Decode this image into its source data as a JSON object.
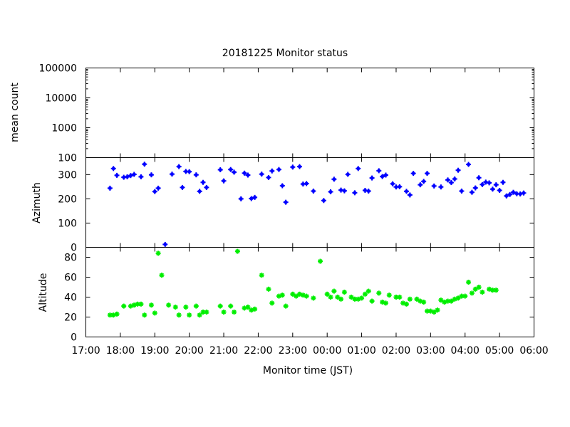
{
  "chart_data": {
    "type": "scatter",
    "title": "20181225 Monitor status",
    "xlabel": "Monitor time (JST)",
    "x_tick_labels": [
      "17:00",
      "18:00",
      "19:00",
      "20:00",
      "21:00",
      "22:00",
      "23:00",
      "00:00",
      "01:00",
      "02:00",
      "03:00",
      "04:00",
      "05:00",
      "06:00"
    ],
    "xlim": [
      "17:00",
      "06:00"
    ],
    "grid": false,
    "legend": "none",
    "panels": [
      {
        "key": "count",
        "ylabel": "mean count",
        "yscale": "log",
        "ylim": [
          100,
          100000
        ],
        "y_tick_labels": [
          "100",
          "1000",
          "10000",
          "100000"
        ],
        "color": "#0000ff",
        "points": []
      },
      {
        "key": "azimuth",
        "ylabel": "Azimuth",
        "yscale": "linear",
        "ylim": [
          0,
          370
        ],
        "y_tick_labels": [
          "0",
          "100",
          "200",
          "300"
        ],
        "color": "#0000ff",
        "points": [
          [
            "17:42",
            244
          ],
          [
            "17:48",
            325
          ],
          [
            "17:54",
            297
          ],
          [
            "18:06",
            289
          ],
          [
            "18:12",
            291
          ],
          [
            "18:18",
            296
          ],
          [
            "18:24",
            301
          ],
          [
            "18:36",
            291
          ],
          [
            "18:42",
            343
          ],
          [
            "18:54",
            299
          ],
          [
            "19:00",
            230
          ],
          [
            "19:06",
            244
          ],
          [
            "19:18",
            12
          ],
          [
            "19:30",
            302
          ],
          [
            "19:42",
            333
          ],
          [
            "19:48",
            247
          ],
          [
            "19:54",
            313
          ],
          [
            "20:00",
            312
          ],
          [
            "20:12",
            299
          ],
          [
            "20:18",
            231
          ],
          [
            "20:24",
            268
          ],
          [
            "20:30",
            247
          ],
          [
            "20:54",
            320
          ],
          [
            "21:00",
            274
          ],
          [
            "21:12",
            321
          ],
          [
            "21:18",
            310
          ],
          [
            "21:30",
            200
          ],
          [
            "21:36",
            306
          ],
          [
            "21:42",
            298
          ],
          [
            "21:48",
            201
          ],
          [
            "21:54",
            206
          ],
          [
            "22:06",
            302
          ],
          [
            "22:18",
            288
          ],
          [
            "22:24",
            315
          ],
          [
            "22:36",
            321
          ],
          [
            "22:42",
            254
          ],
          [
            "22:48",
            186
          ],
          [
            "23:00",
            331
          ],
          [
            "23:12",
            333
          ],
          [
            "23:18",
            261
          ],
          [
            "23:24",
            263
          ],
          [
            "23:36",
            232
          ],
          [
            "23:54",
            193
          ],
          [
            "00:06",
            229
          ],
          [
            "00:12",
            281
          ],
          [
            "00:24",
            236
          ],
          [
            "00:30",
            233
          ],
          [
            "00:36",
            301
          ],
          [
            "00:48",
            225
          ],
          [
            "00:54",
            325
          ],
          [
            "01:06",
            235
          ],
          [
            "01:12",
            232
          ],
          [
            "01:18",
            286
          ],
          [
            "01:30",
            316
          ],
          [
            "01:36",
            292
          ],
          [
            "01:42",
            298
          ],
          [
            "01:54",
            262
          ],
          [
            "02:00",
            249
          ],
          [
            "02:06",
            250
          ],
          [
            "02:18",
            231
          ],
          [
            "02:24",
            216
          ],
          [
            "02:30",
            305
          ],
          [
            "02:42",
            258
          ],
          [
            "02:48",
            272
          ],
          [
            "02:54",
            305
          ],
          [
            "03:06",
            253
          ],
          [
            "03:18",
            249
          ],
          [
            "03:30",
            278
          ],
          [
            "03:36",
            267
          ],
          [
            "03:42",
            282
          ],
          [
            "03:48",
            318
          ],
          [
            "03:54",
            232
          ],
          [
            "04:06",
            342
          ],
          [
            "04:12",
            227
          ],
          [
            "04:18",
            245
          ],
          [
            "04:24",
            287
          ],
          [
            "04:30",
            259
          ],
          [
            "04:36",
            269
          ],
          [
            "04:42",
            266
          ],
          [
            "04:48",
            240
          ],
          [
            "04:54",
            258
          ],
          [
            "05:00",
            235
          ],
          [
            "05:06",
            268
          ],
          [
            "05:12",
            212
          ],
          [
            "05:18",
            218
          ],
          [
            "05:24",
            227
          ],
          [
            "05:30",
            221
          ],
          [
            "05:36",
            220
          ],
          [
            "05:42",
            224
          ]
        ]
      },
      {
        "key": "altitude",
        "ylabel": "Altitude",
        "yscale": "linear",
        "ylim": [
          0,
          90
        ],
        "y_tick_labels": [
          "0",
          "20",
          "40",
          "60",
          "80"
        ],
        "color": "#00ee00",
        "points": [
          [
            "17:42",
            22
          ],
          [
            "17:48",
            22
          ],
          [
            "17:54",
            23
          ],
          [
            "18:06",
            31
          ],
          [
            "18:18",
            31
          ],
          [
            "18:24",
            32
          ],
          [
            "18:30",
            33
          ],
          [
            "18:36",
            33
          ],
          [
            "18:42",
            22
          ],
          [
            "18:54",
            32
          ],
          [
            "19:00",
            24
          ],
          [
            "19:06",
            84
          ],
          [
            "19:12",
            62
          ],
          [
            "19:24",
            32
          ],
          [
            "19:36",
            30
          ],
          [
            "19:42",
            22
          ],
          [
            "19:54",
            30
          ],
          [
            "20:00",
            22
          ],
          [
            "20:12",
            31
          ],
          [
            "20:18",
            22
          ],
          [
            "20:24",
            25
          ],
          [
            "20:30",
            25
          ],
          [
            "20:54",
            31
          ],
          [
            "21:00",
            25
          ],
          [
            "21:12",
            31
          ],
          [
            "21:18",
            25
          ],
          [
            "21:24",
            86
          ],
          [
            "21:36",
            29
          ],
          [
            "21:42",
            30
          ],
          [
            "21:48",
            27
          ],
          [
            "21:54",
            28
          ],
          [
            "22:06",
            62
          ],
          [
            "22:18",
            48
          ],
          [
            "22:24",
            34
          ],
          [
            "22:36",
            41
          ],
          [
            "22:42",
            42
          ],
          [
            "22:48",
            31
          ],
          [
            "23:00",
            43
          ],
          [
            "23:06",
            41
          ],
          [
            "23:12",
            43
          ],
          [
            "23:18",
            42
          ],
          [
            "23:24",
            41
          ],
          [
            "23:36",
            39
          ],
          [
            "23:48",
            76
          ],
          [
            "00:00",
            43
          ],
          [
            "00:06",
            40
          ],
          [
            "00:12",
            46
          ],
          [
            "00:18",
            40
          ],
          [
            "00:24",
            38
          ],
          [
            "00:30",
            45
          ],
          [
            "00:42",
            40
          ],
          [
            "00:48",
            38
          ],
          [
            "00:54",
            38
          ],
          [
            "01:00",
            39
          ],
          [
            "01:06",
            43
          ],
          [
            "01:12",
            46
          ],
          [
            "01:18",
            36
          ],
          [
            "01:30",
            44
          ],
          [
            "01:36",
            35
          ],
          [
            "01:42",
            34
          ],
          [
            "01:48",
            42
          ],
          [
            "02:00",
            40
          ],
          [
            "02:06",
            40
          ],
          [
            "02:12",
            34
          ],
          [
            "02:18",
            33
          ],
          [
            "02:24",
            38
          ],
          [
            "02:36",
            38
          ],
          [
            "02:42",
            36
          ],
          [
            "02:48",
            35
          ],
          [
            "02:54",
            26
          ],
          [
            "03:00",
            26
          ],
          [
            "03:06",
            25
          ],
          [
            "03:12",
            27
          ],
          [
            "03:18",
            37
          ],
          [
            "03:24",
            35
          ],
          [
            "03:30",
            36
          ],
          [
            "03:36",
            36
          ],
          [
            "03:42",
            38
          ],
          [
            "03:48",
            39
          ],
          [
            "03:54",
            41
          ],
          [
            "04:00",
            41
          ],
          [
            "04:06",
            55
          ],
          [
            "04:12",
            44
          ],
          [
            "04:18",
            48
          ],
          [
            "04:24",
            50
          ],
          [
            "04:30",
            45
          ],
          [
            "04:42",
            48
          ],
          [
            "04:48",
            47
          ],
          [
            "04:54",
            47
          ]
        ]
      }
    ]
  }
}
